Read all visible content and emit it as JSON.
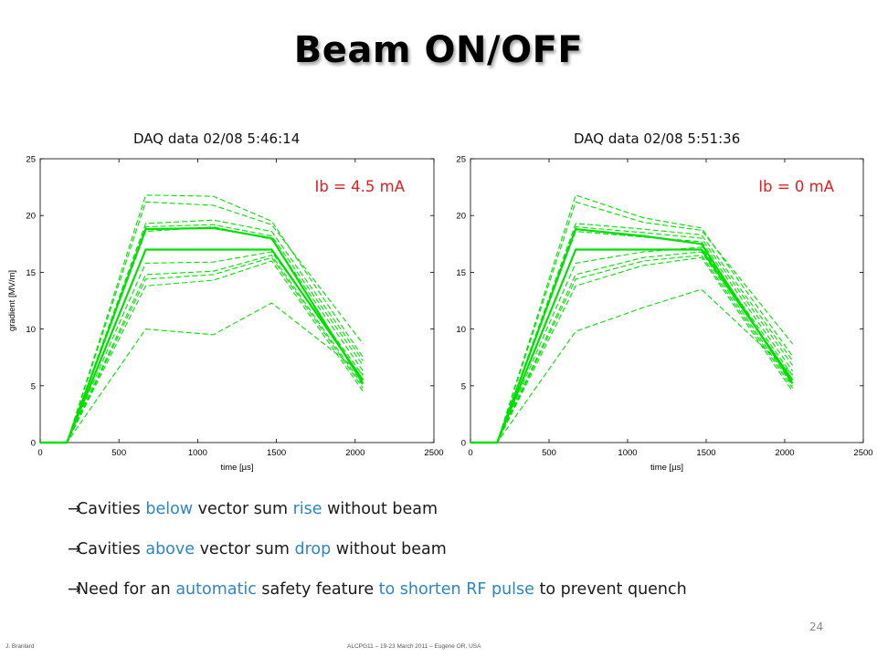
{
  "slide": {
    "title": "Beam ON/OFF",
    "page_number": "24",
    "footer_left": "J. Branlard",
    "footer_center": "ALCPG11 – 19-23 March 2011 – Eugene OR, USA"
  },
  "charts_text": [
    {
      "caption": "DAQ data 02/08   5:46:14",
      "annotation": "Ib = 4.5 mA"
    },
    {
      "caption": "DAQ data 02/08   5:51:36",
      "annotation": "Ib = 0 mA"
    }
  ],
  "bullets": [
    {
      "arrow": "→",
      "parts": [
        {
          "text": "Cavities ",
          "hl": false
        },
        {
          "text": "below",
          "hl": true
        },
        {
          "text": " vector sum ",
          "hl": false
        },
        {
          "text": "rise",
          "hl": true
        },
        {
          "text": " without beam",
          "hl": false
        }
      ]
    },
    {
      "arrow": "→",
      "parts": [
        {
          "text": "Cavities ",
          "hl": false
        },
        {
          "text": "above",
          "hl": true
        },
        {
          "text": " vector sum ",
          "hl": false
        },
        {
          "text": "drop",
          "hl": true
        },
        {
          "text": " without beam",
          "hl": false
        }
      ]
    },
    {
      "arrow": "→",
      "parts": [
        {
          "text": "Need for an ",
          "hl": false
        },
        {
          "text": "automatic",
          "hl": true
        },
        {
          "text": " safety feature ",
          "hl": false
        },
        {
          "text": "to shorten RF pulse",
          "hl": true
        },
        {
          "text": " to prevent quench",
          "hl": false
        }
      ]
    }
  ],
  "colors": {
    "series": "#00e000",
    "annotation": "#e02020",
    "highlight": "#2e86c1"
  },
  "chart_data": [
    {
      "type": "line",
      "title": "DAQ data 02/08   5:46:14",
      "xlabel": "time [µs]",
      "ylabel": "gradient [MV/m]",
      "xlim": [
        0,
        2500
      ],
      "ylim": [
        0,
        25
      ],
      "xticks": [
        0,
        500,
        1000,
        1500,
        2000,
        2500
      ],
      "yticks": [
        0,
        5,
        10,
        15,
        20,
        25
      ],
      "x": [
        0,
        170,
        670,
        1100,
        1470,
        2050
      ],
      "series": [
        {
          "values": [
            0,
            0,
            17.0,
            17.0,
            17.0,
            5.5
          ],
          "style": "solid"
        },
        {
          "values": [
            0,
            0,
            18.8,
            18.9,
            18.0,
            5.2
          ],
          "style": "solid"
        },
        {
          "values": [
            0,
            0,
            21.8,
            21.7,
            19.5,
            7.5
          ],
          "style": "dashed"
        },
        {
          "values": [
            0,
            0,
            21.2,
            20.9,
            19.2,
            8.7
          ],
          "style": "dashed"
        },
        {
          "values": [
            0,
            0,
            19.3,
            19.6,
            18.6,
            7.2
          ],
          "style": "dashed"
        },
        {
          "values": [
            0,
            0,
            19.0,
            19.2,
            18.2,
            6.8
          ],
          "style": "dashed"
        },
        {
          "values": [
            0,
            0,
            18.6,
            19.0,
            17.9,
            6.3
          ],
          "style": "dashed"
        },
        {
          "values": [
            0,
            0,
            15.8,
            15.9,
            16.8,
            5.9
          ],
          "style": "dashed"
        },
        {
          "values": [
            0,
            0,
            14.8,
            15.1,
            16.5,
            5.0
          ],
          "style": "dashed"
        },
        {
          "values": [
            0,
            0,
            14.4,
            14.8,
            16.3,
            4.8
          ],
          "style": "dashed"
        },
        {
          "values": [
            0,
            0,
            13.8,
            14.3,
            16.0,
            4.5
          ],
          "style": "dashed"
        },
        {
          "values": [
            0,
            0,
            10.0,
            9.5,
            12.3,
            6.0
          ],
          "style": "dashed"
        }
      ]
    },
    {
      "type": "line",
      "title": "DAQ data 02/08   5:51:36",
      "xlabel": "time [µs]",
      "ylabel": "",
      "xlim": [
        0,
        2500
      ],
      "ylim": [
        0,
        25
      ],
      "xticks": [
        0,
        500,
        1000,
        1500,
        2000,
        2500
      ],
      "yticks": [
        0,
        5,
        10,
        15,
        20,
        25
      ],
      "x": [
        0,
        170,
        670,
        1100,
        1470,
        2050
      ],
      "series": [
        {
          "values": [
            0,
            0,
            17.0,
            17.0,
            17.0,
            5.5
          ],
          "style": "solid"
        },
        {
          "values": [
            0,
            0,
            18.8,
            18.2,
            17.5,
            5.2
          ],
          "style": "solid"
        },
        {
          "values": [
            0,
            0,
            21.8,
            19.8,
            18.9,
            7.6
          ],
          "style": "dashed"
        },
        {
          "values": [
            0,
            0,
            21.2,
            19.4,
            18.7,
            8.7
          ],
          "style": "dashed"
        },
        {
          "values": [
            0,
            0,
            19.3,
            18.8,
            18.3,
            7.2
          ],
          "style": "dashed"
        },
        {
          "values": [
            0,
            0,
            19.0,
            18.5,
            18.0,
            6.8
          ],
          "style": "dashed"
        },
        {
          "values": [
            0,
            0,
            18.6,
            18.1,
            17.7,
            6.3
          ],
          "style": "dashed"
        },
        {
          "values": [
            0,
            0,
            15.8,
            16.8,
            17.2,
            5.9
          ],
          "style": "dashed"
        },
        {
          "values": [
            0,
            0,
            14.8,
            16.3,
            16.8,
            5.0
          ],
          "style": "dashed"
        },
        {
          "values": [
            0,
            0,
            14.4,
            16.0,
            16.5,
            4.8
          ],
          "style": "dashed"
        },
        {
          "values": [
            0,
            0,
            13.8,
            15.6,
            16.3,
            4.5
          ],
          "style": "dashed"
        },
        {
          "values": [
            0,
            0,
            9.8,
            11.9,
            13.5,
            6.0
          ],
          "style": "dashed"
        }
      ]
    }
  ]
}
